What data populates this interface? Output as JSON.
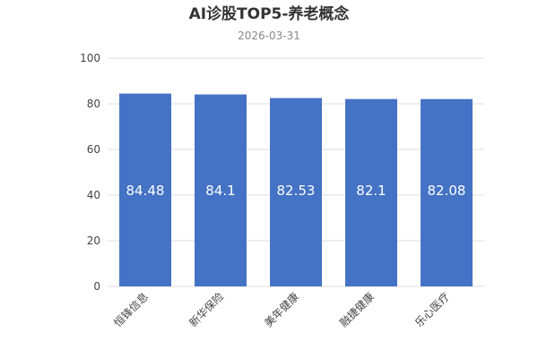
{
  "chart_data": {
    "type": "bar",
    "title": "AI诊股TOP5-养老概念",
    "subtitle": "2026-03-31",
    "categories": [
      "恒锋信息",
      "新华保险",
      "美年健康",
      "融捷健康",
      "乐心医疗"
    ],
    "values": [
      84.48,
      84.1,
      82.53,
      82.1,
      82.08
    ],
    "value_labels": [
      "84.48",
      "84.1",
      "82.53",
      "82.1",
      "82.08"
    ],
    "xlabel": "",
    "ylabel": "",
    "ylim": [
      0,
      100
    ],
    "yticks": [
      "0",
      "20",
      "40",
      "60",
      "80",
      "100"
    ],
    "grid": true,
    "bar_color": "#4472c4"
  }
}
